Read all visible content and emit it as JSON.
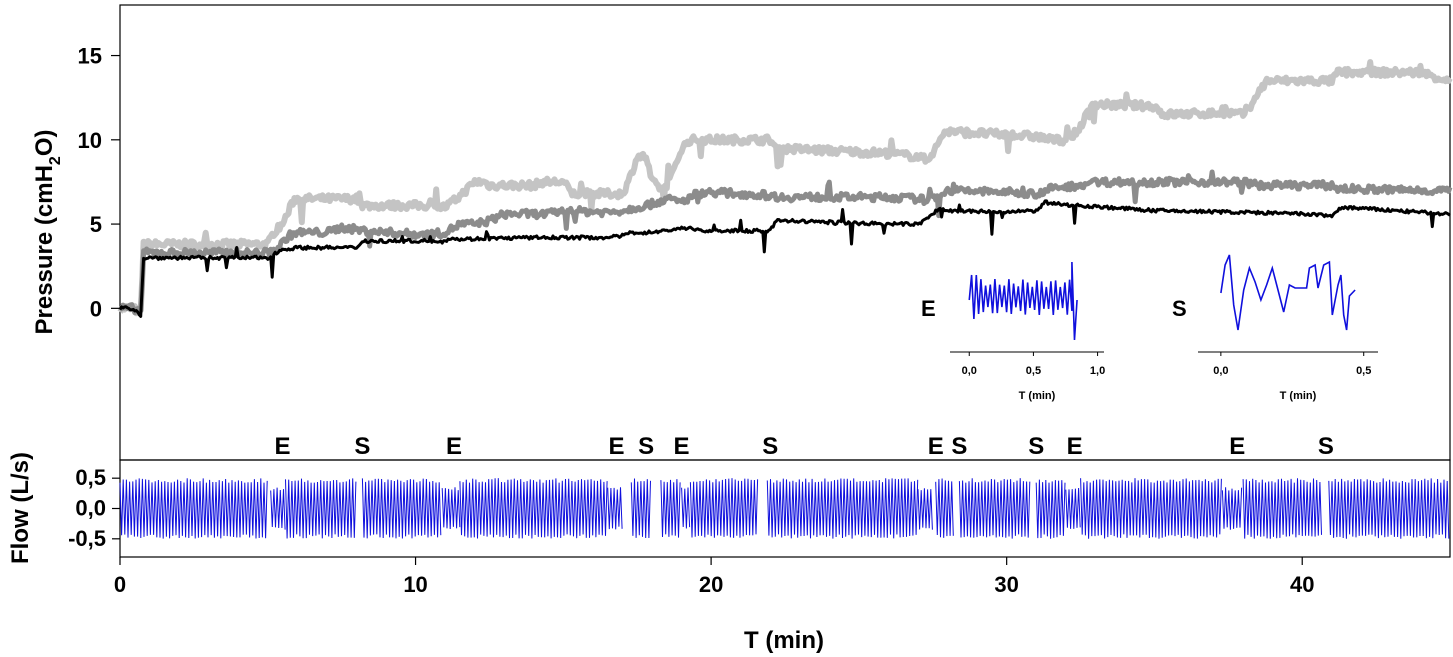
{
  "chart_data": [
    {
      "type": "line",
      "panel": "pressure",
      "ylabel_main": "Pressure (cmH",
      "ylabel_sub": "2",
      "ylabel_end": "O)",
      "xlim": [
        0,
        45
      ],
      "ylim": [
        -9,
        18
      ],
      "yticks": [
        0,
        5,
        10,
        15
      ],
      "series": [
        {
          "color": "#c4c4c4",
          "x": [
            0,
            0.45,
            0.7,
            0.8,
            2,
            5,
            5.2,
            5.5,
            5.9,
            6,
            8,
            8.2,
            10.5,
            11,
            11.4,
            12,
            12.3,
            12.5,
            14,
            14.3,
            15,
            15.3,
            17,
            17.2,
            17.5,
            17.8,
            18,
            18.4,
            18.7,
            19,
            19.3,
            19.8,
            22,
            22.2,
            26,
            27,
            27.3,
            27.6,
            27.9,
            28,
            31,
            31.5,
            32,
            32.4,
            32.8,
            33,
            35,
            35.3,
            37.5,
            38,
            38.4,
            38.8,
            39,
            41,
            41.2,
            44,
            45
          ],
          "y": [
            0,
            0,
            -0.3,
            3.8,
            3.8,
            3.8,
            4.5,
            5,
            6.5,
            6.5,
            6.5,
            6.1,
            6.1,
            6,
            6.5,
            7.5,
            7.5,
            7.3,
            7.3,
            7.5,
            7.5,
            6.8,
            6.8,
            7.5,
            9,
            9,
            7.5,
            7,
            8,
            9.5,
            10,
            10,
            10,
            9.5,
            9.2,
            9,
            8.8,
            9.5,
            10.5,
            10.5,
            10.2,
            10,
            10,
            10.5,
            11.8,
            12.1,
            12,
            11.5,
            11.6,
            11.5,
            12.5,
            13.5,
            13.5,
            13.5,
            14,
            14,
            13.5
          ]
        },
        {
          "color": "#8c8c8c",
          "x": [
            0,
            0.45,
            0.7,
            0.8,
            2,
            5,
            5.3,
            5.7,
            6,
            7,
            7.5,
            8.3,
            10,
            10.5,
            11,
            11.5,
            12,
            12.5,
            13,
            14.5,
            15,
            16.5,
            17,
            17.5,
            18,
            18.5,
            19,
            19.2,
            19.5,
            20,
            22,
            22.3,
            26,
            27,
            27.3,
            27.6,
            28,
            30,
            31,
            31.5,
            32,
            32.4,
            33,
            35,
            38,
            38.5,
            41,
            41.2,
            44,
            45
          ],
          "y": [
            0,
            0,
            -0.2,
            3.3,
            3.3,
            3.3,
            3.5,
            4.3,
            4.5,
            4.5,
            4.8,
            4.6,
            4.4,
            4.4,
            4.5,
            5,
            5,
            5.2,
            5.6,
            5.6,
            5.8,
            5.7,
            5.8,
            6,
            6.2,
            6.5,
            6.3,
            6.5,
            6.8,
            6.9,
            6.7,
            6.6,
            6.6,
            6.5,
            6.4,
            6.6,
            7.0,
            6.9,
            6.8,
            7.1,
            7.2,
            7.3,
            7.5,
            7.5,
            7.5,
            7.3,
            7.3,
            7.1,
            7.0,
            7.0
          ]
        },
        {
          "color": "#000000",
          "x": [
            0,
            0.45,
            0.7,
            0.8,
            2,
            5,
            5.5,
            6,
            8,
            8.2,
            8.3,
            10,
            11,
            11.2,
            11.4,
            14,
            16.5,
            17,
            17.3,
            18,
            18.8,
            19.3,
            19.6,
            22,
            22.2,
            22.4,
            26,
            27,
            27.3,
            27.7,
            28,
            30,
            31,
            31.3,
            31.5,
            32.5,
            35,
            38,
            40,
            41,
            41.2,
            41.4,
            44,
            45
          ],
          "y": [
            0,
            0,
            -0.4,
            3.0,
            3.0,
            3.0,
            3.5,
            3.6,
            3.6,
            4.0,
            4.0,
            4.0,
            4.0,
            4.2,
            4.1,
            4.2,
            4.2,
            4.3,
            4.5,
            4.5,
            4.7,
            4.8,
            4.6,
            4.6,
            5.2,
            5.2,
            5.0,
            5.0,
            5.3,
            5.9,
            5.8,
            5.7,
            5.8,
            6.3,
            6.2,
            6.1,
            5.8,
            5.7,
            5.6,
            5.5,
            5.8,
            6.0,
            5.7,
            5.6
          ]
        }
      ],
      "markers": [
        {
          "label": "E",
          "x": 5.5
        },
        {
          "label": "S",
          "x": 8.2
        },
        {
          "label": "E",
          "x": 11.3
        },
        {
          "label": "E",
          "x": 16.8
        },
        {
          "label": "S",
          "x": 17.8
        },
        {
          "label": "E",
          "x": 19.0
        },
        {
          "label": "S",
          "x": 22.0
        },
        {
          "label": "E",
          "x": 27.6
        },
        {
          "label": "S",
          "x": 28.4
        },
        {
          "label": "S",
          "x": 31.0
        },
        {
          "label": "E",
          "x": 32.3
        },
        {
          "label": "E",
          "x": 37.8
        },
        {
          "label": "S",
          "x": 40.8
        }
      ]
    },
    {
      "type": "line",
      "panel": "flow",
      "ylabel": "Flow (L/s)",
      "xlabel": "T (min)",
      "xlim": [
        0,
        45
      ],
      "ylim": [
        -0.8,
        0.8
      ],
      "yticks": [
        0.5,
        0.0,
        -0.5
      ],
      "ytick_labels": [
        "0,5",
        "0,0",
        "-0,5"
      ],
      "xticks": [
        0,
        10,
        20,
        30,
        40
      ],
      "amplitude": 0.5,
      "color": "#1010dd",
      "segments": [
        {
          "x": [
            0,
            5.0
          ],
          "a": 0.5
        },
        {
          "x": [
            5.1,
            5.6
          ],
          "a": 0.35
        },
        {
          "x": [
            5.6,
            8.0
          ],
          "a": 0.5
        },
        {
          "x": [
            8.2,
            10.9
          ],
          "a": 0.5
        },
        {
          "x": [
            10.9,
            11.5
          ],
          "a": 0.35
        },
        {
          "x": [
            11.5,
            16.5
          ],
          "a": 0.5
        },
        {
          "x": [
            16.5,
            17.0
          ],
          "a": 0.35
        },
        {
          "x": [
            17.3,
            18.0
          ],
          "a": 0.5
        },
        {
          "x": [
            18.3,
            19.0
          ],
          "a": 0.5
        },
        {
          "x": [
            19.0,
            19.3
          ],
          "a": 0.35
        },
        {
          "x": [
            19.3,
            21.6
          ],
          "a": 0.5
        },
        {
          "x": [
            21.9,
            27.0
          ],
          "a": 0.5
        },
        {
          "x": [
            27.0,
            27.5
          ],
          "a": 0.35
        },
        {
          "x": [
            27.6,
            28.2
          ],
          "a": 0.5
        },
        {
          "x": [
            28.4,
            30.8
          ],
          "a": 0.5
        },
        {
          "x": [
            31.0,
            32.0
          ],
          "a": 0.5
        },
        {
          "x": [
            32.0,
            32.5
          ],
          "a": 0.35
        },
        {
          "x": [
            32.5,
            37.3
          ],
          "a": 0.5
        },
        {
          "x": [
            37.3,
            38.0
          ],
          "a": 0.35
        },
        {
          "x": [
            38.0,
            40.7
          ],
          "a": 0.5
        },
        {
          "x": [
            40.9,
            45.0
          ],
          "a": 0.5
        }
      ]
    },
    {
      "type": "line",
      "panel": "inset-E",
      "marker": "E",
      "xlabel": "T (min)",
      "xlim": [
        -0.15,
        1.05
      ],
      "xticks": [
        0.0,
        0.5,
        1.0
      ],
      "xtick_labels": [
        "0,0",
        "0,5",
        "1,0"
      ],
      "color": "#1010dd"
    },
    {
      "type": "line",
      "panel": "inset-S",
      "marker": "S",
      "xlabel": "T (min)",
      "xlim": [
        -0.08,
        0.55
      ],
      "xticks": [
        0.0,
        0.5
      ],
      "xtick_labels": [
        "0,0",
        "0,5"
      ],
      "color": "#1010dd"
    }
  ]
}
